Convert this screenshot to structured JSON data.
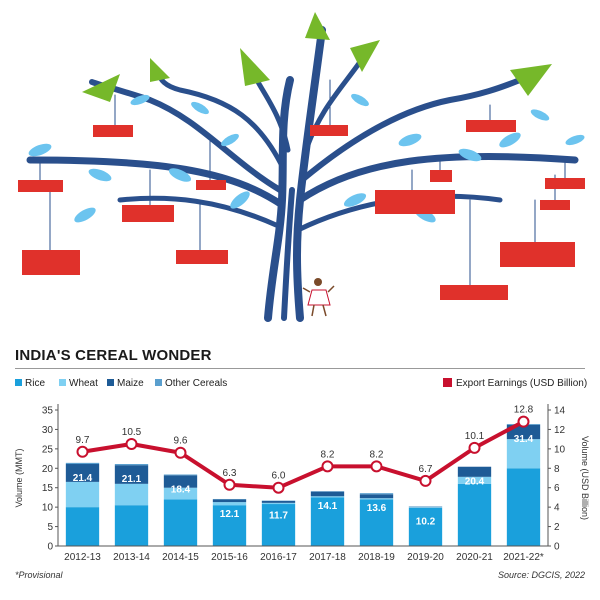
{
  "colors": {
    "rice": "#1aa0dc",
    "wheat": "#7fd0f2",
    "maize": "#1e5b96",
    "other": "#5a9fce",
    "export": "#c8102e",
    "tree": "#2a4f8c",
    "leaf": "#6cc4ef",
    "arrow": "#76b82a",
    "container": "#e0312b"
  },
  "illustration": {
    "icons": [
      "tree-icon",
      "grain-container-icon",
      "leaf-icon",
      "growth-arrow-icon",
      "farmer-figure-icon"
    ]
  },
  "chart_data": {
    "type": "bar",
    "title": "INDIA'S CEREAL WONDER",
    "categories": [
      "2012-13",
      "2013-14",
      "2014-15",
      "2015-16",
      "2016-17",
      "2017-18",
      "2018-19",
      "2019-20",
      "2020-21",
      "2021-22*"
    ],
    "stacked": true,
    "series": [
      {
        "name": "Rice",
        "color": "#1aa0dc",
        "values": [
          10.0,
          10.5,
          12.0,
          10.5,
          10.8,
          12.5,
          12.0,
          9.8,
          16.0,
          20.0
        ]
      },
      {
        "name": "Wheat",
        "color": "#7fd0f2",
        "values": [
          6.5,
          5.5,
          3.0,
          0.8,
          0.3,
          0.3,
          0.3,
          0.2,
          1.8,
          7.5
        ]
      },
      {
        "name": "Maize",
        "color": "#1e5b96",
        "values": [
          4.6,
          4.8,
          3.2,
          0.7,
          0.5,
          1.2,
          1.0,
          0.1,
          2.6,
          3.7
        ]
      },
      {
        "name": "Other Cereals",
        "color": "#5a9fce",
        "values": [
          0.3,
          0.3,
          0.2,
          0.1,
          0.1,
          0.1,
          0.3,
          0.1,
          0.0,
          0.2
        ]
      }
    ],
    "totals": [
      "21.4",
      "21.1",
      "18.4",
      "12.1",
      "11.7",
      "14.1",
      "13.6",
      "10.2",
      "20.4",
      "31.4"
    ],
    "line_series": {
      "name": "Export Earnings (USD Billion)",
      "color": "#c8102e",
      "values": [
        9.7,
        10.5,
        9.6,
        6.3,
        6.0,
        8.2,
        8.2,
        6.7,
        10.1,
        12.8
      ],
      "labels": [
        "9.7",
        "10.5",
        "9.6",
        "6.3",
        "6.0",
        "8.2",
        "8.2",
        "6.7",
        "10.1",
        "12.8"
      ]
    },
    "ylabel_left": "Volume (MMT)",
    "ylabel_right": "Volume (USD Billion)",
    "ylim_left": [
      0,
      35
    ],
    "yticks_left": [
      0,
      5,
      10,
      15,
      20,
      25,
      30,
      35
    ],
    "ylim_right": [
      0,
      14
    ],
    "yticks_right": [
      0,
      2,
      4,
      6,
      8,
      10,
      12,
      14
    ],
    "grid": false,
    "legend_position": "top"
  },
  "footnote": "*Provisional",
  "source": "Source: DGCIS, 2022"
}
